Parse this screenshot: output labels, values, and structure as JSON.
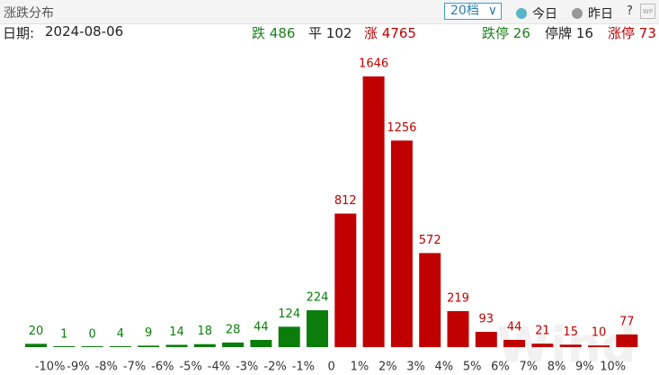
{
  "header": {
    "title": "涨跌分布",
    "select": "20档",
    "options": [
      "今日",
      "昨日"
    ],
    "help": "?",
    "icon": "WP"
  },
  "summary": {
    "date_label": "日期:",
    "date": "2024-08-06",
    "down": {
      "label": "跌",
      "value": 486
    },
    "flat": {
      "label": "平",
      "value": 102
    },
    "up": {
      "label": "涨",
      "value": 4765
    },
    "limit_down": {
      "label": "跌停",
      "value": 26
    },
    "suspended": {
      "label": "停牌",
      "value": 16
    },
    "limit_up": {
      "label": "涨停",
      "value": 73
    }
  },
  "watermark": "Wind",
  "chart_data": {
    "type": "bar",
    "boundary_labels": [
      "-10%",
      "-9%",
      "-8%",
      "-7%",
      "-6%",
      "-5%",
      "-4%",
      "-3%",
      "-2%",
      "-1%",
      "0",
      "1%",
      "2%",
      "3%",
      "4%",
      "5%",
      "6%",
      "7%",
      "8%",
      "9%",
      "10%"
    ],
    "values": [
      20,
      1,
      0,
      4,
      9,
      14,
      18,
      28,
      44,
      124,
      224,
      812,
      1646,
      1256,
      572,
      219,
      93,
      44,
      21,
      15,
      10,
      77
    ],
    "colors": [
      "#0a7d0a",
      "#0a7d0a",
      "#0a7d0a",
      "#0a7d0a",
      "#0a7d0a",
      "#0a7d0a",
      "#0a7d0a",
      "#0a7d0a",
      "#0a7d0a",
      "#0a7d0a",
      "#0a7d0a",
      "#c00000",
      "#c00000",
      "#c00000",
      "#c00000",
      "#c00000",
      "#c00000",
      "#c00000",
      "#c00000",
      "#c00000",
      "#c00000",
      "#c00000"
    ]
  }
}
